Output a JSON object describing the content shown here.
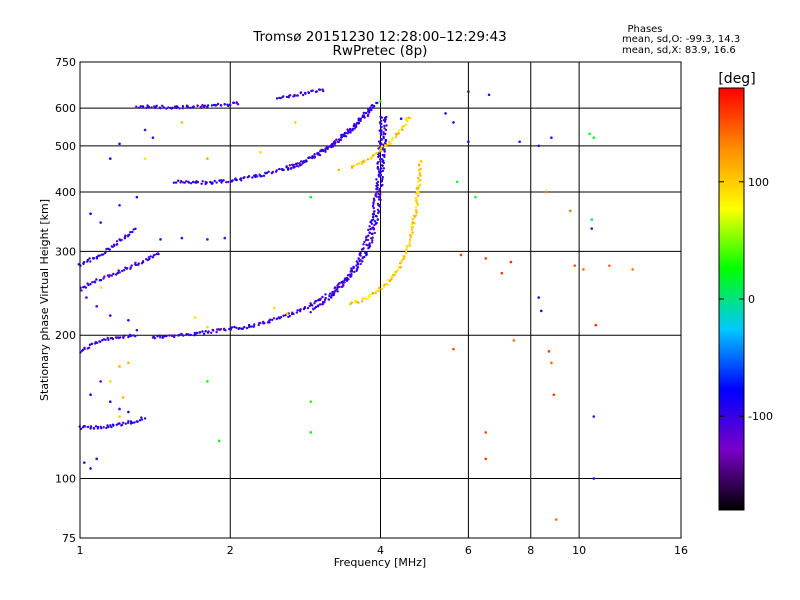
{
  "chart_data": {
    "type": "scatter",
    "title": "Tromsø 20151230 12:28:00–12:29:43",
    "subtitle": "RwPretec (8p)",
    "xlabel": "Frequency [MHz]",
    "ylabel": "Stationary phase Virtual Height [km]",
    "x_scale": "log",
    "y_scale": "log",
    "xlim": [
      1,
      16
    ],
    "ylim": [
      75,
      750
    ],
    "x_ticks": [
      1,
      2,
      4,
      6,
      8,
      10,
      16
    ],
    "y_ticks": [
      75,
      100,
      200,
      300,
      400,
      500,
      600,
      750
    ],
    "grid": true,
    "phase_legend": {
      "title": "Phases",
      "line_o": "mean, sd,O: -99.3, 14.3",
      "line_x": "mean, sd,X:  83.9, 16.6"
    },
    "colorbar": {
      "label": "[deg]",
      "range": [
        -180,
        180
      ],
      "ticks": [
        100,
        0,
        -100
      ],
      "stops": [
        "#000000",
        "#7a00c8",
        "#0000ff",
        "#00c8ff",
        "#00ff00",
        "#ffff00",
        "#ff8c00",
        "#ff0000"
      ]
    },
    "series": [
      {
        "trace": "o-mode-f-layer",
        "phase": -100,
        "points": [
          [
            1.4,
            198
          ],
          [
            1.6,
            200
          ],
          [
            1.8,
            203
          ],
          [
            2.0,
            206
          ],
          [
            2.2,
            209
          ],
          [
            2.4,
            214
          ],
          [
            2.6,
            220
          ],
          [
            2.8,
            227
          ],
          [
            3.0,
            236
          ],
          [
            3.2,
            246
          ],
          [
            3.4,
            262
          ],
          [
            3.6,
            285
          ],
          [
            3.75,
            315
          ],
          [
            3.85,
            350
          ],
          [
            3.92,
            400
          ],
          [
            3.97,
            450
          ],
          [
            4.0,
            520
          ],
          [
            4.02,
            580
          ]
        ]
      },
      {
        "trace": "o-mode-f-layer-2nd",
        "phase": -100,
        "points": [
          [
            2.9,
            225
          ],
          [
            3.1,
            235
          ],
          [
            3.3,
            250
          ],
          [
            3.5,
            268
          ],
          [
            3.7,
            290
          ],
          [
            3.85,
            320
          ],
          [
            3.95,
            360
          ],
          [
            4.02,
            420
          ],
          [
            4.07,
            500
          ],
          [
            4.1,
            580
          ]
        ]
      },
      {
        "trace": "x-mode-f-layer",
        "phase": 100,
        "points": [
          [
            3.5,
            232
          ],
          [
            3.7,
            238
          ],
          [
            3.9,
            245
          ],
          [
            4.1,
            255
          ],
          [
            4.3,
            270
          ],
          [
            4.45,
            290
          ],
          [
            4.6,
            320
          ],
          [
            4.7,
            360
          ],
          [
            4.78,
            420
          ],
          [
            4.82,
            470
          ]
        ]
      },
      {
        "trace": "o-mode-multihop",
        "phase": -100,
        "points": [
          [
            1.55,
            420
          ],
          [
            1.8,
            418
          ],
          [
            2.1,
            425
          ],
          [
            2.4,
            438
          ],
          [
            2.7,
            455
          ],
          [
            3.0,
            480
          ],
          [
            3.3,
            515
          ],
          [
            3.6,
            560
          ],
          [
            3.85,
            610
          ]
        ]
      },
      {
        "trace": "o-mode-multihop-2nd",
        "phase": -100,
        "points": [
          [
            2.6,
            445
          ],
          [
            2.9,
            470
          ],
          [
            3.2,
            500
          ],
          [
            3.5,
            540
          ],
          [
            3.75,
            580
          ],
          [
            3.95,
            620
          ]
        ]
      },
      {
        "trace": "x-mode-multihop",
        "phase": 100,
        "points": [
          [
            3.5,
            450
          ],
          [
            3.8,
            470
          ],
          [
            4.1,
            500
          ],
          [
            4.4,
            540
          ],
          [
            4.6,
            580
          ]
        ]
      },
      {
        "trace": "multihop-top",
        "phase": -100,
        "points": [
          [
            1.3,
            605
          ],
          [
            1.5,
            602
          ],
          [
            1.7,
            604
          ],
          [
            1.9,
            608
          ],
          [
            2.1,
            614
          ]
        ]
      },
      {
        "trace": "multihop-top-right",
        "phase": -100,
        "points": [
          [
            2.5,
            632
          ],
          [
            2.7,
            640
          ],
          [
            2.9,
            648
          ],
          [
            3.1,
            655
          ]
        ]
      },
      {
        "trace": "e-layer",
        "phase": -100,
        "points": [
          [
            1.0,
            128
          ],
          [
            1.1,
            128
          ],
          [
            1.2,
            130
          ],
          [
            1.3,
            132
          ],
          [
            1.35,
            135
          ]
        ]
      },
      {
        "trace": "e-layer-echo",
        "phase": -100,
        "points": [
          [
            1.0,
            185
          ],
          [
            1.05,
            190
          ],
          [
            1.1,
            195
          ],
          [
            1.2,
            198
          ],
          [
            1.3,
            200
          ]
        ]
      },
      {
        "trace": "e-layer-echo-2",
        "phase": -100,
        "points": [
          [
            1.0,
            250
          ],
          [
            1.1,
            262
          ],
          [
            1.2,
            272
          ],
          [
            1.3,
            282
          ],
          [
            1.45,
            300
          ]
        ]
      },
      {
        "trace": "e-layer-echo-3",
        "phase": -100,
        "points": [
          [
            1.0,
            280
          ],
          [
            1.1,
            295
          ],
          [
            1.2,
            315
          ],
          [
            1.3,
            335
          ]
        ]
      },
      {
        "trace": "low-freq-clutter",
        "phase": -100,
        "points": [
          [
            1.02,
            108
          ],
          [
            1.05,
            105
          ],
          [
            1.08,
            110
          ],
          [
            1.05,
            150
          ],
          [
            1.1,
            160
          ],
          [
            1.15,
            145
          ],
          [
            1.2,
            140
          ],
          [
            1.25,
            138
          ],
          [
            1.03,
            240
          ],
          [
            1.08,
            230
          ],
          [
            1.15,
            220
          ],
          [
            1.25,
            215
          ],
          [
            1.3,
            205
          ],
          [
            1.05,
            360
          ],
          [
            1.1,
            345
          ],
          [
            1.2,
            375
          ],
          [
            1.3,
            390
          ],
          [
            1.4,
            520
          ],
          [
            1.35,
            540
          ],
          [
            1.15,
            470
          ],
          [
            1.2,
            505
          ],
          [
            1.45,
            318
          ],
          [
            1.6,
            320
          ],
          [
            1.8,
            318
          ],
          [
            1.95,
            320
          ]
        ]
      },
      {
        "trace": "scattered-noise",
        "phase": 150,
        "points": [
          [
            5.6,
            187
          ],
          [
            6.5,
            125
          ],
          [
            6.5,
            110
          ],
          [
            7.4,
            195
          ],
          [
            8.7,
            185
          ],
          [
            8.8,
            175
          ],
          [
            8.9,
            150
          ],
          [
            9.0,
            82
          ],
          [
            7.0,
            270
          ],
          [
            7.3,
            285
          ],
          [
            9.8,
            280
          ],
          [
            9.6,
            365
          ],
          [
            10.2,
            275
          ],
          [
            10.8,
            210
          ],
          [
            11.5,
            280
          ],
          [
            12.8,
            275
          ],
          [
            8.6,
            400
          ],
          [
            5.8,
            295
          ],
          [
            6.5,
            290
          ]
        ]
      },
      {
        "trace": "scattered-noise-blue",
        "phase": -100,
        "points": [
          [
            10.7,
            135
          ],
          [
            10.7,
            100
          ],
          [
            8.3,
            240
          ],
          [
            8.4,
            225
          ],
          [
            7.6,
            510
          ],
          [
            8.3,
            500
          ],
          [
            10.6,
            335
          ],
          [
            6.6,
            640
          ],
          [
            6.0,
            650
          ],
          [
            5.6,
            560
          ],
          [
            5.4,
            585
          ],
          [
            6.0,
            510
          ],
          [
            8.8,
            520
          ],
          [
            4.4,
            570
          ]
        ]
      },
      {
        "trace": "scattered-noise-misc",
        "phase": 20,
        "points": [
          [
            2.9,
            145
          ],
          [
            2.9,
            125
          ],
          [
            1.8,
            160
          ],
          [
            1.9,
            120
          ],
          [
            2.9,
            390
          ],
          [
            5.7,
            420
          ],
          [
            6.2,
            390
          ],
          [
            10.7,
            520
          ],
          [
            10.5,
            530
          ],
          [
            10.6,
            350
          ],
          [
            4.0,
            620
          ]
        ]
      },
      {
        "trace": "low-freq-yellow",
        "phase": 100,
        "points": [
          [
            1.2,
            172
          ],
          [
            1.15,
            160
          ],
          [
            1.22,
            148
          ],
          [
            1.2,
            135
          ],
          [
            1.25,
            175
          ],
          [
            1.1,
            252
          ],
          [
            1.35,
            470
          ],
          [
            1.6,
            560
          ],
          [
            1.8,
            470
          ],
          [
            2.3,
            485
          ],
          [
            2.7,
            560
          ],
          [
            3.3,
            445
          ],
          [
            2.45,
            228
          ],
          [
            2.6,
            222
          ],
          [
            1.7,
            218
          ],
          [
            1.8,
            208
          ]
        ]
      }
    ]
  }
}
